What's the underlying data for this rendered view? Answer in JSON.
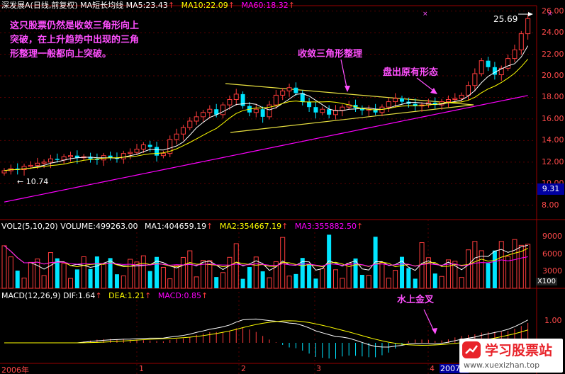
{
  "header": {
    "symbol": "深发展A",
    "mode": "(日线,前复权)",
    "indicator": "MA短长均线",
    "ma5": "MA5:23.43",
    "ma10": "MA10:22.09",
    "ma60": "MA60:18.32"
  },
  "annotations": {
    "note_lines": [
      "这只股票仍然是收敛三角形向上",
      "突破，在上升趋势中出现的三角",
      "形整理一般都向上突破。"
    ],
    "triangle_label": "收敛三角形整理",
    "pattern_label": "盘出原有形态",
    "macd_label": "水上金叉",
    "high_label": "25.69",
    "low_label": "← 10.74"
  },
  "price_axis": {
    "ticks": [
      "26.00",
      "24.00",
      "22.00",
      "20.00",
      "18.00",
      "16.00",
      "14.00",
      "12.00",
      "10.00",
      "8.00"
    ],
    "current_tag": "9.31"
  },
  "volume_panel": {
    "header": {
      "name": "VOL2(5,10,20)",
      "volume": "VOLUME:499263.00",
      "ma1": "MA1:404659.19",
      "ma2": "MA2:354667.19",
      "ma3": "MA3:355882.50"
    },
    "ticks": [
      "9000",
      "6000",
      "3000"
    ],
    "unit": "X100"
  },
  "macd_panel": {
    "header": {
      "name": "MACD(12,26,9)",
      "dif": "DIF:1.64",
      "dea": "DEA:1.21",
      "macd": "MACD:0.85"
    },
    "ticks": [
      "1.00"
    ]
  },
  "time_axis": {
    "labels": [
      "2006年",
      "1",
      "2",
      "3",
      "4",
      "2007/0"
    ]
  },
  "watermark": {
    "brand": "学习股票站",
    "url": "www.xuexizhan.top"
  },
  "colors": {
    "up": "#ff3c3c",
    "down": "#00e5ff",
    "ma5": "#ffffff",
    "ma10": "#ffff00",
    "ma60": "#ff00ff",
    "grid": "#9a0000",
    "note": "#ff50ff"
  },
  "chart_data": {
    "type": "candlestick",
    "title": "",
    "y_range": [
      7,
      26.5
    ],
    "x_labels": [
      "2006年",
      "1",
      "2",
      "3",
      "4",
      "2007/0"
    ],
    "candles_count": 80,
    "closes": [
      11.2,
      11.4,
      11.3,
      11.6,
      11.7,
      11.9,
      12.0,
      12.3,
      12.2,
      12.5,
      12.6,
      12.4,
      12.5,
      12.3,
      12.2,
      12.6,
      12.4,
      12.3,
      12.8,
      12.9,
      13.2,
      13.6,
      13.4,
      12.6,
      12.8,
      14.1,
      14.6,
      15.2,
      15.8,
      16.2,
      16.6,
      16.9,
      16.4,
      17.3,
      17.8,
      18.3,
      17.2,
      16.6,
      16.9,
      16.2,
      17.3,
      18.2,
      18.6,
      18.9,
      18.4,
      17.6,
      17.1,
      16.6,
      16.9,
      16.4,
      16.8,
      17.1,
      17.3,
      17.0,
      16.8,
      16.9,
      16.6,
      17.1,
      17.6,
      17.9,
      17.6,
      17.4,
      17.2,
      17.3,
      17.5,
      17.3,
      17.6,
      17.8,
      17.9,
      18.2,
      19.1,
      20.2,
      21.4,
      20.8,
      20.1,
      20.7,
      21.6,
      22.4,
      23.9,
      25.3
    ],
    "series": [
      {
        "name": "MA5",
        "values": []
      },
      {
        "name": "MA10",
        "values": []
      },
      {
        "name": "MA60",
        "values": []
      }
    ]
  }
}
